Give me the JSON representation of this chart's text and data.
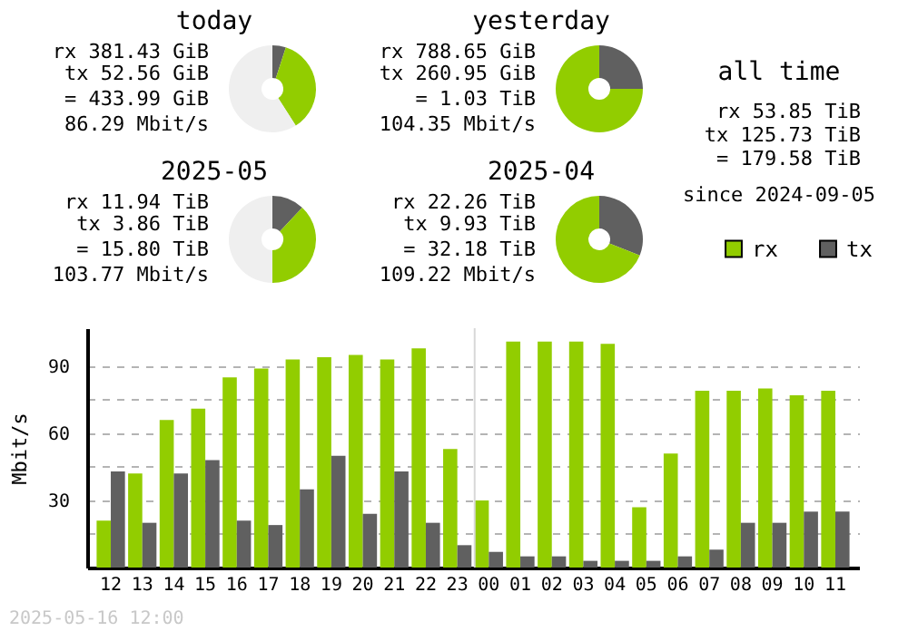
{
  "chart_data": [
    {
      "type": "donut",
      "title": "today",
      "categories": [
        null,
        null,
        null
      ],
      "values": [
        5,
        36,
        59
      ],
      "colors": [
        "#606060",
        "#92cd00",
        "#efefef"
      ],
      "annotations": [
        "rx 381.43 GiB",
        "tx 52.56 GiB",
        "= 433.99 GiB",
        "86.29 Mbit/s"
      ]
    },
    {
      "type": "donut",
      "title": "yesterday",
      "categories": [
        null,
        null
      ],
      "values": [
        25,
        75
      ],
      "colors": [
        "#606060",
        "#92cd00"
      ],
      "annotations": [
        "rx 788.65 GiB",
        "tx 260.95 GiB",
        "= 1.03 TiB",
        "104.35 Mbit/s"
      ]
    },
    {
      "type": "other",
      "title": "all time",
      "annotations": [
        "rx 53.85 TiB",
        "tx 125.73 TiB",
        "= 179.58 TiB",
        "since 2024-09-05"
      ]
    },
    {
      "type": "donut",
      "title": "2025-05",
      "categories": [
        null,
        null,
        null
      ],
      "values": [
        12,
        38,
        50
      ],
      "colors": [
        "#606060",
        "#92cd00",
        "#efefef"
      ],
      "annotations": [
        "rx 11.94 TiB",
        "tx 3.86 TiB",
        "= 15.80 TiB",
        "103.77 Mbit/s"
      ]
    },
    {
      "type": "donut",
      "title": "2025-04",
      "categories": [
        null,
        null
      ],
      "values": [
        31,
        69
      ],
      "colors": [
        "#606060",
        "#92cd00"
      ],
      "annotations": [
        "rx 22.26 TiB",
        "tx 9.93 TiB",
        "= 32.18 TiB",
        "109.22 Mbit/s"
      ]
    },
    {
      "type": "bar",
      "ylabel": "Mbit/s",
      "categories": [
        "12",
        "13",
        "14",
        "15",
        "16",
        "17",
        "18",
        "19",
        "20",
        "21",
        "22",
        "23",
        "00",
        "01",
        "02",
        "03",
        "04",
        "05",
        "06",
        "07",
        "08",
        "09",
        "10",
        "11"
      ],
      "series": [
        {
          "name": "rx",
          "color": "#92cd00",
          "values": [
            21,
            42,
            66,
            71,
            85,
            89,
            93,
            94,
            95,
            93,
            98,
            53,
            30,
            101,
            101,
            101,
            100,
            27,
            51,
            79,
            79,
            80,
            77,
            79
          ]
        },
        {
          "name": "tx",
          "color": "#606060",
          "values": [
            43,
            20,
            42,
            48,
            21,
            19,
            35,
            50,
            24,
            43,
            20,
            10,
            7,
            5,
            5,
            3,
            3,
            3,
            5,
            8,
            20,
            20,
            25,
            25
          ]
        }
      ],
      "ylim": [
        0,
        107
      ],
      "yticks": [
        {
          "value": 15,
          "label": null
        },
        30,
        {
          "value": 45,
          "label": null
        },
        60,
        {
          "value": 75,
          "label": null
        },
        90
      ],
      "grid": "y",
      "legend": "top right",
      "ref_lines": [
        {
          "axis": "x",
          "value": "00",
          "color": "#d8d8d8"
        }
      ],
      "annotations": [
        "2025-05-16 12:00"
      ]
    }
  ]
}
